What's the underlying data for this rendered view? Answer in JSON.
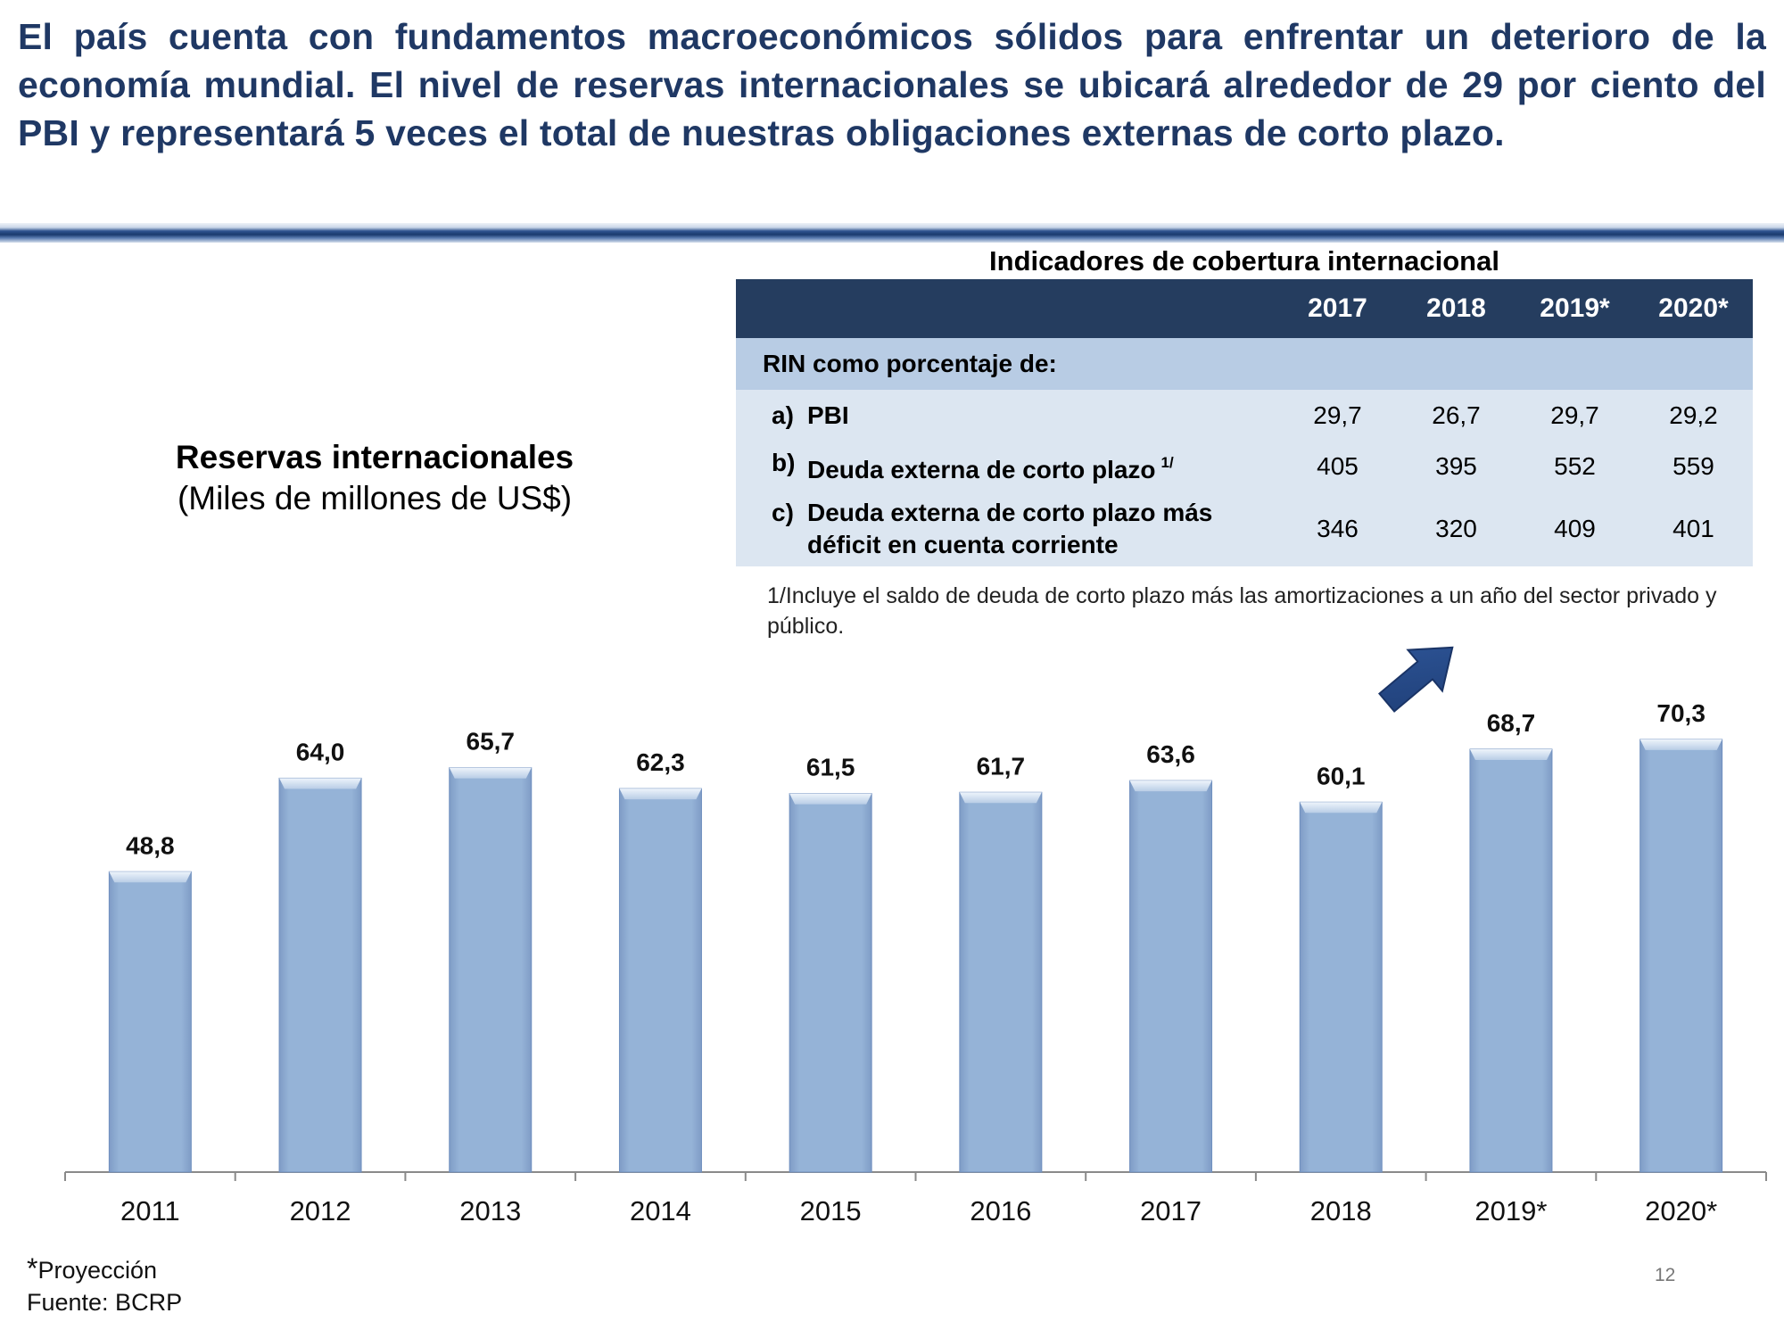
{
  "headline": "El país cuenta con fundamentos macroeconómicos sólidos para enfrentar un deterioro de la economía mundial. El nivel de reservas internacionales se ubicará alrededor de 29 por ciento del PBI y representará 5 veces el total de nuestras obligaciones externas de corto plazo.",
  "table": {
    "title": "Indicadores de cobertura internacional",
    "years": [
      "2017",
      "2018",
      "2019*",
      "2020*"
    ],
    "subheader": "RIN como porcentaje de:",
    "rows": [
      {
        "letter": "a)",
        "label": "PBI",
        "note": "",
        "values": [
          "29,7",
          "26,7",
          "29,7",
          "29,2"
        ]
      },
      {
        "letter": "b)",
        "label": "Deuda externa de corto plazo",
        "note": "1/",
        "values": [
          "405",
          "395",
          "552",
          "559"
        ]
      },
      {
        "letter": "c)",
        "label": "Deuda externa de corto plazo más déficit en cuenta corriente",
        "note": "",
        "values": [
          "346",
          "320",
          "409",
          "401"
        ]
      }
    ],
    "footnote": "1/Incluye el saldo de deuda de corto plazo más las amortizaciones a un año del sector privado y público."
  },
  "chart_title": "Reservas internacionales",
  "chart_subtitle": "(Miles de millones de US$)",
  "chart_data": {
    "type": "bar",
    "title": "Reservas internacionales",
    "subtitle": "(Miles de millones de US$)",
    "categories": [
      "2011",
      "2012",
      "2013",
      "2014",
      "2015",
      "2016",
      "2017",
      "2018",
      "2019*",
      "2020*"
    ],
    "values": [
      48.8,
      64.0,
      65.7,
      62.3,
      61.5,
      61.7,
      63.6,
      60.1,
      68.7,
      70.3
    ],
    "value_labels": [
      "48,8",
      "64,0",
      "65,7",
      "62,3",
      "61,5",
      "61,7",
      "63,6",
      "60,1",
      "68,7",
      "70,3"
    ],
    "ylim": [
      0,
      80
    ],
    "grid": false,
    "legend": "none",
    "bar_color": "#95B3D7",
    "annotation": "arrow-up-right"
  },
  "colors": {
    "headline": "#1F3864",
    "table_header": "#253D5F",
    "table_subheader": "#B8CCE4",
    "table_rows": "#DCE6F1",
    "bars": "#95B3D7",
    "arrow": "#2E5597"
  },
  "source": {
    "star": "*",
    "projection": "Proyección",
    "source": "Fuente: BCRP"
  },
  "page_number": "12"
}
